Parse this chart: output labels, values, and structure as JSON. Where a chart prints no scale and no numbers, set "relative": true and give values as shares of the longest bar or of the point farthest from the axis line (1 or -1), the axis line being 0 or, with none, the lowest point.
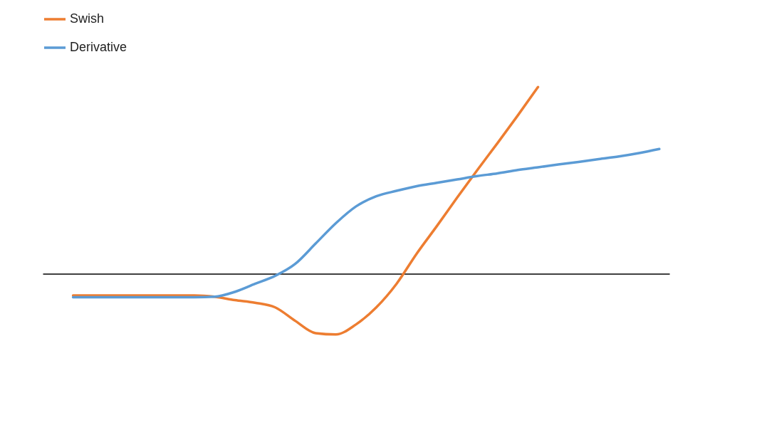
{
  "chart_data": {
    "type": "line",
    "relative": true,
    "legend": "top left",
    "line_style": "solid",
    "categories": [
      null,
      null,
      null,
      null,
      null,
      null,
      null,
      null,
      null,
      null,
      null,
      null,
      null,
      null,
      null,
      null,
      null,
      null,
      null,
      null,
      null,
      null,
      null,
      null,
      null,
      null,
      null,
      null,
      null,
      null
    ],
    "series": [
      {
        "name": "Swish",
        "color": "#ed7d31",
        "values": [
          -0.116,
          -0.116,
          -0.116,
          -0.116,
          -0.116,
          -0.116,
          -0.116,
          -0.123,
          -0.141,
          -0.155,
          -0.18,
          -0.253,
          -0.318,
          -0.325,
          -0.271,
          -0.18,
          -0.054,
          0.108,
          0.256,
          0.408,
          0.556,
          0.7,
          0.848,
          1.0,
          null,
          null,
          null,
          null,
          null,
          null
        ]
      },
      {
        "name": "Derivative",
        "color": "#5b9bd5",
        "values": [
          -0.126,
          -0.126,
          -0.126,
          -0.126,
          -0.126,
          -0.126,
          -0.126,
          -0.123,
          -0.097,
          -0.054,
          -0.011,
          0.054,
          0.162,
          0.271,
          0.361,
          0.415,
          0.444,
          0.469,
          0.487,
          0.505,
          0.523,
          0.538,
          0.556,
          0.57,
          0.585,
          0.599,
          0.614,
          0.628,
          0.646,
          0.668
        ]
      }
    ]
  }
}
